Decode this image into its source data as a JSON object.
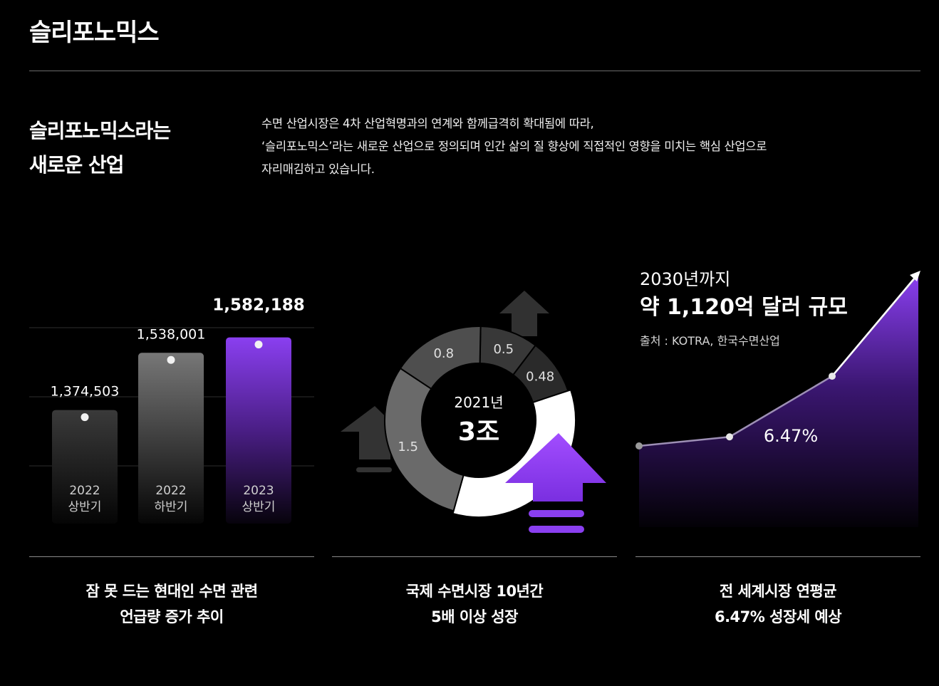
{
  "page": {
    "title": "슬리포노믹스",
    "heading_lines": [
      "슬리포노믹스라는",
      "새로운 산업"
    ],
    "intro_lines": [
      "수면 산업시장은 4차 산업혁명과의 연계와 함께급격히 확대됨에 따라,",
      "‘슬리포노믹스’라는 새로운 산업으로 정의되며 인간 삶의 질 향상에 직접적인 영향을 미치는 핵심 산업으로",
      "자리매김하고 있습니다."
    ]
  },
  "captions": {
    "bar": [
      "잠 못 드는 현대인 수면 관련",
      "언급량 증가 추이"
    ],
    "donut": [
      "국제 수면시장 10년간",
      "5배 이상 성장"
    ],
    "area": [
      "전 세계시장 연평균",
      "6.47% 성장세 예상"
    ]
  },
  "colors": {
    "background": "#000000",
    "accent_purple": "#8a3ff0",
    "bar_gray": "#6e6e6e",
    "bar_dark": "#333333",
    "donut_white": "#ffffff"
  },
  "chart_data": [
    {
      "type": "bar",
      "title": "",
      "categories": [
        [
          "2022",
          "상반기"
        ],
        [
          "2022",
          "하반기"
        ],
        [
          "2023",
          "상반기"
        ]
      ],
      "values": [
        1374503,
        1538001,
        1582188
      ],
      "value_labels": [
        "1,374,503",
        "1,538,001",
        "1,582,188"
      ],
      "highlight_index": 2,
      "grid": true
    },
    {
      "type": "pie",
      "title": "",
      "center_label": "2021년",
      "center_value": "3조",
      "slices": [
        {
          "label": "0.5",
          "value": 0.5,
          "color": "#383838"
        },
        {
          "label": "0.48",
          "value": 0.48,
          "color": "#2a2a2a"
        },
        {
          "label": "",
          "value": 1.72,
          "color": "#ffffff"
        },
        {
          "label": "1.5",
          "value": 1.5,
          "color": "#6a6a6a"
        },
        {
          "label": "0.8",
          "value": 0.8,
          "color": "#4e4e4e"
        }
      ],
      "icons": [
        "up-arrow-icon-purple",
        "up-arrow-icon-gray-left",
        "up-arrow-icon-gray-top"
      ]
    },
    {
      "type": "area",
      "title": "2030년까지",
      "subtitle": "약 1,120억 달러 규모",
      "source": "출처 : KOTRA, 한국수면산업",
      "rate_label": "6.47%",
      "series": [
        {
          "values": [
            0.14,
            0.33,
            0.58,
            1.0
          ]
        }
      ],
      "arrow_end": true
    }
  ]
}
